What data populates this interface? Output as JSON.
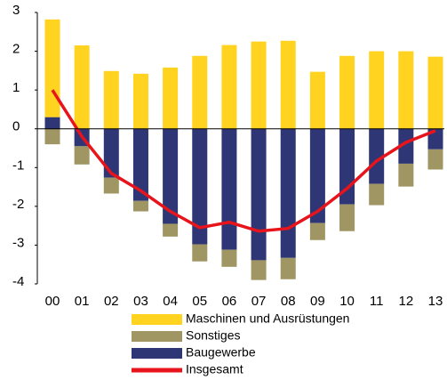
{
  "chart_data": {
    "type": "bar",
    "stacked": true,
    "categories": [
      "00",
      "01",
      "02",
      "03",
      "04",
      "05",
      "06",
      "07",
      "08",
      "09",
      "10",
      "11",
      "12",
      "13"
    ],
    "series": [
      {
        "name": "Maschinen und Ausrüstungen",
        "color": "#ffd320",
        "values": [
          2.52,
          2.15,
          1.49,
          1.42,
          1.58,
          1.88,
          2.16,
          2.25,
          2.27,
          1.47,
          1.88,
          2.0,
          2.0,
          1.86
        ]
      },
      {
        "name": "Sonstiges",
        "color": "#a09663",
        "values": [
          -0.4,
          -0.47,
          -0.41,
          -0.27,
          -0.33,
          -0.44,
          -0.44,
          -0.51,
          -0.55,
          -0.44,
          -0.69,
          -0.55,
          -0.59,
          -0.52
        ]
      },
      {
        "name": "Baugewerbe",
        "color": "#2e3675",
        "values": [
          0.3,
          -0.45,
          -1.26,
          -1.86,
          -2.45,
          -2.98,
          -3.12,
          -3.39,
          -3.33,
          -2.43,
          -1.95,
          -1.42,
          -0.9,
          -0.53
        ]
      },
      {
        "name": "Insgesamt",
        "color": "#e8141b",
        "type": "line",
        "values": [
          1.0,
          -0.2,
          -1.15,
          -1.6,
          -2.13,
          -2.55,
          -2.41,
          -2.64,
          -2.57,
          -2.13,
          -1.54,
          -0.83,
          -0.35,
          -0.05
        ]
      }
    ],
    "ylim": [
      -4,
      3
    ],
    "yticks": [
      3,
      2,
      1,
      0,
      -1,
      -2,
      -3,
      -4
    ]
  }
}
